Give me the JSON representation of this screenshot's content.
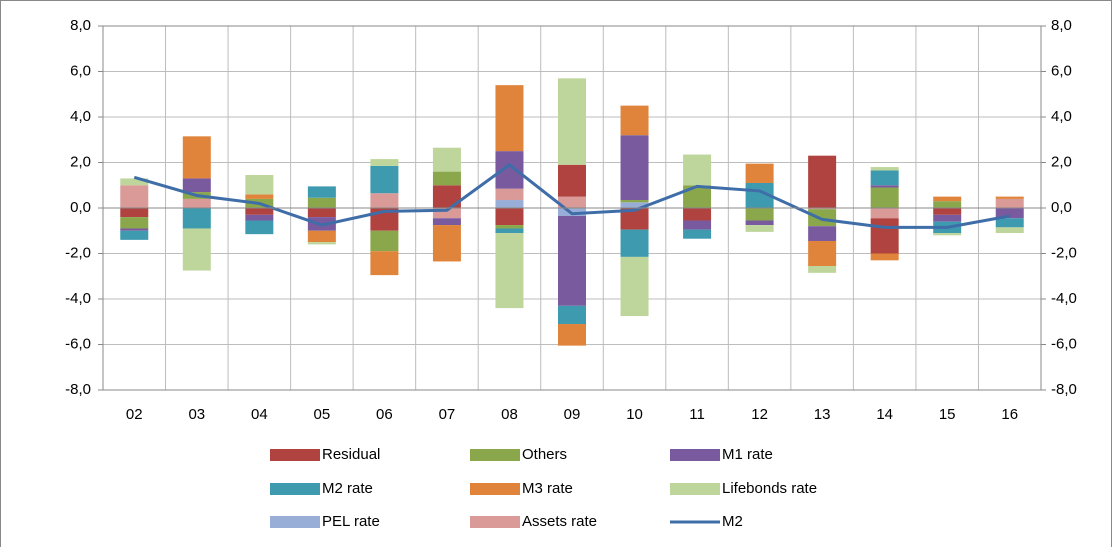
{
  "chart_data": {
    "type": "bar",
    "stacked": true,
    "categories": [
      "02",
      "03",
      "04",
      "05",
      "06",
      "07",
      "08",
      "09",
      "10",
      "11",
      "12",
      "13",
      "14",
      "15",
      "16"
    ],
    "series": [
      {
        "name": "Residual",
        "color": "#b0433f",
        "values": [
          -0.4,
          0,
          -0.3,
          -0.4,
          -1.0,
          1.0,
          -0.75,
          1.4,
          -0.95,
          -0.55,
          0,
          2.3,
          -1.55,
          -0.3,
          0
        ]
      },
      {
        "name": "Others",
        "color": "#8aa74b",
        "values": [
          -0.5,
          0.3,
          0.4,
          0.45,
          -0.9,
          0.6,
          -0.15,
          0,
          0.1,
          1.0,
          -0.55,
          -0.75,
          0.9,
          0.3,
          0
        ]
      },
      {
        "name": "M1 rate",
        "color": "#7a5a9f",
        "values": [
          -0.1,
          0.6,
          -0.25,
          -0.6,
          0,
          -0.3,
          1.65,
          -3.95,
          2.85,
          -0.4,
          -0.2,
          -0.65,
          0.1,
          -0.3,
          -0.45
        ]
      },
      {
        "name": "M2 rate",
        "color": "#3e9aaf",
        "values": [
          -0.4,
          -0.9,
          -0.6,
          0.5,
          1.2,
          0,
          -0.2,
          -0.8,
          -1.2,
          -0.4,
          1.1,
          0,
          0.65,
          -0.5,
          -0.4
        ]
      },
      {
        "name": "M3 rate",
        "color": "#e0843b",
        "values": [
          0,
          1.85,
          0.2,
          -0.5,
          -1.05,
          -1.6,
          2.9,
          -0.95,
          1.3,
          0,
          0.85,
          -1.1,
          -0.3,
          0.2,
          0.1
        ]
      },
      {
        "name": "Lifebonds rate",
        "color": "#bed69c",
        "values": [
          0.3,
          -1.85,
          0.85,
          -0.1,
          0.3,
          1.05,
          -3.3,
          3.8,
          -2.6,
          1.35,
          -0.3,
          -0.3,
          0.15,
          -0.1,
          -0.25
        ]
      },
      {
        "name": "PEL rate",
        "color": "#98aed7",
        "values": [
          0,
          0,
          0,
          0,
          0,
          0,
          0.35,
          -0.35,
          0.25,
          0,
          0,
          0,
          0,
          0,
          0
        ]
      },
      {
        "name": "Assets rate",
        "color": "#d99a98",
        "values": [
          1.0,
          0.4,
          0,
          0,
          0.65,
          -0.45,
          0.5,
          0.5,
          0,
          0,
          0,
          -0.05,
          -0.45,
          0,
          0.4
        ]
      },
      {
        "name": "M2",
        "type": "line",
        "axis": "y2",
        "color": "#3f6da8",
        "values": [
          1.35,
          0.55,
          0.2,
          -0.75,
          -0.15,
          -0.1,
          1.9,
          -0.25,
          -0.1,
          0.95,
          0.75,
          -0.5,
          -0.85,
          -0.85,
          -0.35
        ]
      }
    ],
    "ylim": [
      -8,
      8
    ],
    "yticks": [
      {
        "value": -8,
        "label": "-8,0"
      },
      {
        "value": -6,
        "label": "-6,0"
      },
      {
        "value": -4,
        "label": "-4,0"
      },
      {
        "value": -2,
        "label": "-2,0"
      },
      {
        "value": 0,
        "label": "0,0"
      },
      {
        "value": 2,
        "label": "2,0"
      },
      {
        "value": 4,
        "label": "4,0"
      },
      {
        "value": 6,
        "label": "6,0"
      },
      {
        "value": 8,
        "label": "8,0"
      }
    ],
    "y2lim": [
      -8,
      8
    ],
    "y2ticks": [
      {
        "value": -8,
        "label": "-8,0"
      },
      {
        "value": -6,
        "label": "-6,0"
      },
      {
        "value": -4,
        "label": "-4,0"
      },
      {
        "value": -2,
        "label": "-2,0"
      },
      {
        "value": 0,
        "label": "0,0"
      },
      {
        "value": 2,
        "label": "2,0"
      },
      {
        "value": 4,
        "label": "4,0"
      },
      {
        "value": 6,
        "label": "6,0"
      },
      {
        "value": 8,
        "label": "8,0"
      }
    ],
    "grid": true,
    "legend": "bottom"
  }
}
